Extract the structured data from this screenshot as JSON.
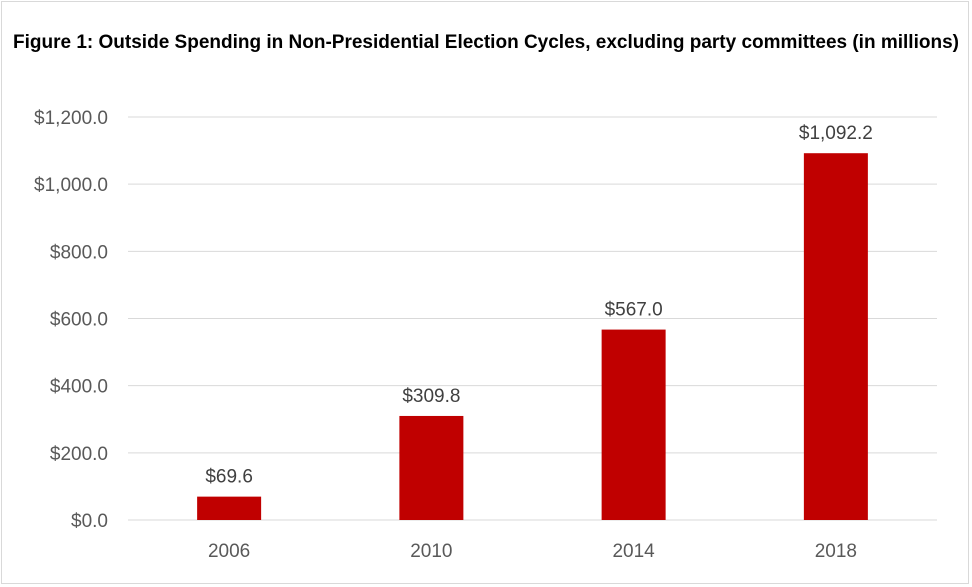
{
  "chart_data": {
    "type": "bar",
    "title": "Figure 1: Outside Spending in Non-Presidential Election Cycles, excluding party committees (in millions)",
    "categories": [
      "2006",
      "2010",
      "2014",
      "2018"
    ],
    "values": [
      69.6,
      309.8,
      567.0,
      1092.2
    ],
    "data_labels": [
      "$69.6",
      "$309.8",
      "$567.0",
      "$1,092.2"
    ],
    "yticks": [
      "$0.0",
      "$200.0",
      "$400.0",
      "$600.0",
      "$800.0",
      "$1,000.0",
      "$1,200.0"
    ],
    "ylim": [
      0,
      1200
    ],
    "grid": true,
    "bar_color": "#c00000"
  }
}
